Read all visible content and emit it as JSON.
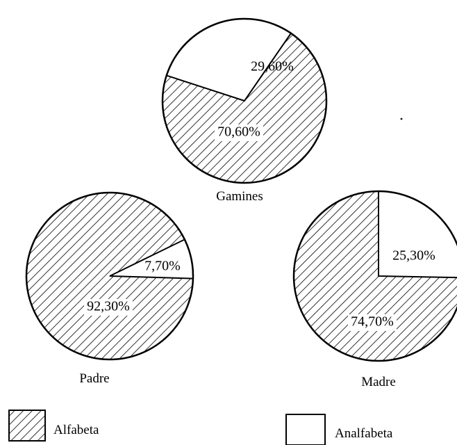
{
  "chart_data": [
    {
      "type": "pie",
      "title": "Gamines",
      "slices": [
        {
          "label": "29,60%",
          "value": 29.6,
          "category": "Analfabeta",
          "fill": "plain"
        },
        {
          "label": "70,60%",
          "value": 70.6,
          "category": "Alfabeta",
          "fill": "hatched"
        }
      ]
    },
    {
      "type": "pie",
      "title": "Padre",
      "slices": [
        {
          "label": "7,70%",
          "value": 7.7,
          "category": "Analfabeta",
          "fill": "plain"
        },
        {
          "label": "92,30%",
          "value": 92.3,
          "category": "Alfabeta",
          "fill": "hatched"
        }
      ]
    },
    {
      "type": "pie",
      "title": "Madre",
      "slices": [
        {
          "label": "25,30%",
          "value": 25.3,
          "category": "Analfabeta",
          "fill": "plain"
        },
        {
          "label": "74,70%",
          "value": 74.7,
          "category": "Alfabeta",
          "fill": "hatched"
        }
      ]
    }
  ],
  "legend": [
    {
      "label": "Alfabeta",
      "fill": "hatched"
    },
    {
      "label": "Analfabeta",
      "fill": "plain"
    }
  ],
  "colors": {
    "ink": "#000000",
    "paper": "#ffffff"
  }
}
